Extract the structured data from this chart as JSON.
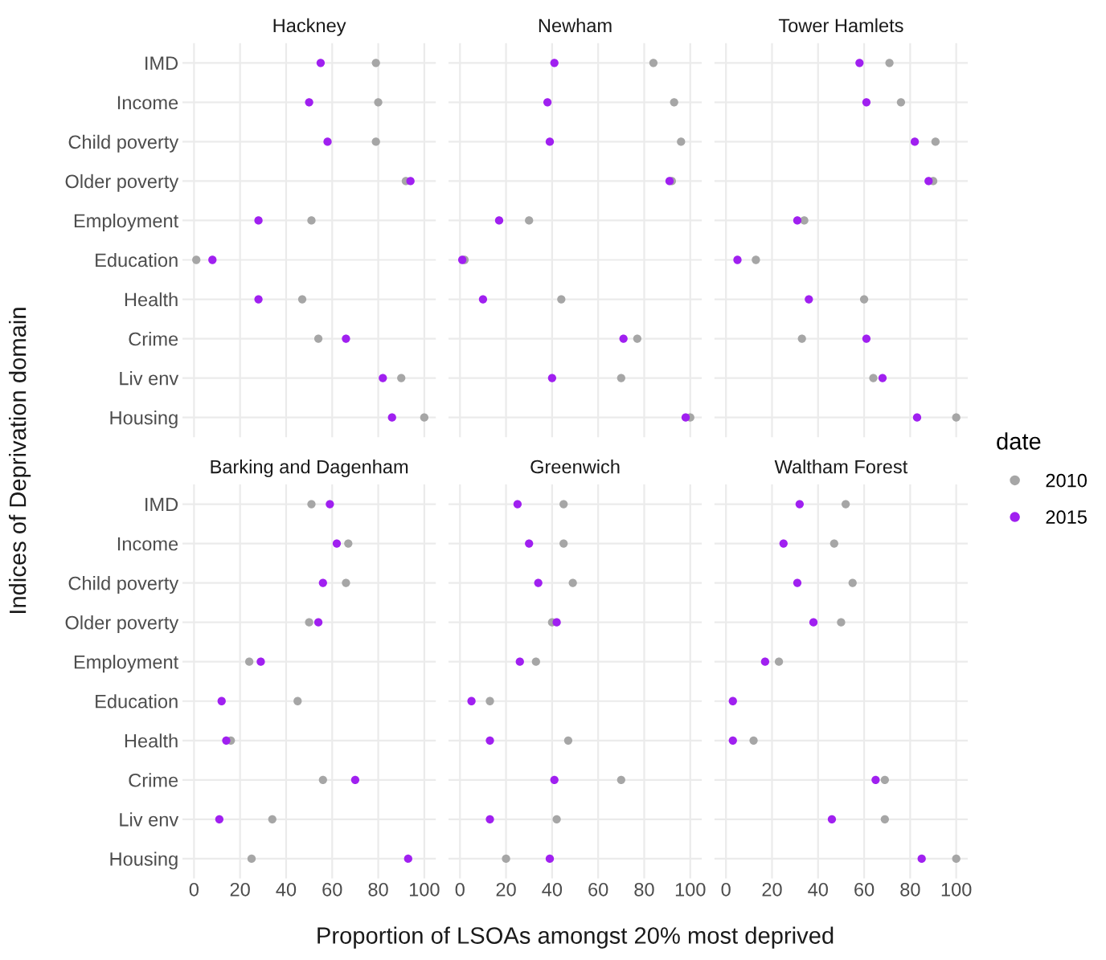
{
  "chart_data": [
    {
      "type": "scatter",
      "orientation": "horizontal",
      "title": "Hackney",
      "ylabel": "Indices of Deprivation domain",
      "legend_title": "date",
      "legend": "right",
      "categories": [
        "IMD",
        "Income",
        "Child poverty",
        "Older poverty",
        "Employment",
        "Education",
        "Health",
        "Crime",
        "Liv env",
        "Housing"
      ],
      "xlim": [
        -5,
        105
      ],
      "xticks": [
        0,
        20,
        40,
        60,
        80,
        100
      ],
      "grid": true,
      "marker": "circle",
      "tick_labels": "y",
      "series": [
        {
          "name": "2010",
          "color": "#a6a6a6",
          "values": [
            79,
            80,
            79,
            92,
            51,
            1,
            47,
            54,
            90,
            100
          ]
        },
        {
          "name": "2015",
          "color": "#a020f0",
          "values": [
            55,
            50,
            58,
            94,
            28,
            8,
            28,
            66,
            82,
            86
          ]
        }
      ]
    },
    {
      "type": "scatter",
      "orientation": "horizontal",
      "title": "Newham",
      "xlim": [
        -5,
        105
      ],
      "xticks": [
        0,
        20,
        40,
        60,
        80,
        100
      ],
      "grid": true,
      "marker": "circle",
      "tick_labels": false,
      "series": [
        {
          "name": "2010",
          "color": "#a6a6a6",
          "values": [
            84,
            93,
            96,
            92,
            30,
            2,
            44,
            77,
            70,
            100
          ]
        },
        {
          "name": "2015",
          "color": "#a020f0",
          "values": [
            41,
            38,
            39,
            91,
            17,
            1,
            10,
            71,
            40,
            98
          ]
        }
      ]
    },
    {
      "type": "scatter",
      "orientation": "horizontal",
      "title": "Tower Hamlets",
      "xlim": [
        -5,
        105
      ],
      "xticks": [
        0,
        20,
        40,
        60,
        80,
        100
      ],
      "grid": true,
      "marker": "circle",
      "tick_labels": false,
      "series": [
        {
          "name": "2010",
          "color": "#a6a6a6",
          "values": [
            71,
            76,
            91,
            90,
            34,
            13,
            60,
            33,
            64,
            100
          ]
        },
        {
          "name": "2015",
          "color": "#a020f0",
          "values": [
            58,
            61,
            82,
            88,
            31,
            5,
            36,
            61,
            68,
            83
          ]
        }
      ]
    },
    {
      "type": "scatter",
      "orientation": "horizontal",
      "title": "Barking and Dagenham",
      "categories": [
        "IMD",
        "Income",
        "Child poverty",
        "Older poverty",
        "Employment",
        "Education",
        "Health",
        "Crime",
        "Liv env",
        "Housing"
      ],
      "xlim": [
        -5,
        105
      ],
      "xticks": [
        0,
        20,
        40,
        60,
        80,
        100
      ],
      "grid": true,
      "marker": "circle",
      "series": [
        {
          "name": "2010",
          "color": "#a6a6a6",
          "values": [
            51,
            67,
            66,
            50,
            24,
            45,
            16,
            56,
            34,
            25
          ]
        },
        {
          "name": "2015",
          "color": "#a020f0",
          "values": [
            59,
            62,
            56,
            54,
            29,
            12,
            14,
            70,
            11,
            93
          ]
        }
      ]
    },
    {
      "type": "scatter",
      "orientation": "horizontal",
      "title": "Greenwich",
      "xlabel": "Proportion of LSOAs amongst 20% most deprived",
      "xlim": [
        -5,
        105
      ],
      "xticks": [
        0,
        20,
        40,
        60,
        80,
        100
      ],
      "grid": true,
      "marker": "circle",
      "tick_labels": "x",
      "series": [
        {
          "name": "2010",
          "color": "#a6a6a6",
          "values": [
            45,
            45,
            49,
            40,
            33,
            13,
            47,
            70,
            42,
            20
          ]
        },
        {
          "name": "2015",
          "color": "#a020f0",
          "values": [
            25,
            30,
            34,
            42,
            26,
            5,
            13,
            41,
            13,
            39
          ]
        }
      ]
    },
    {
      "type": "scatter",
      "orientation": "horizontal",
      "title": "Waltham Forest",
      "xlim": [
        -5,
        105
      ],
      "xticks": [
        0,
        20,
        40,
        60,
        80,
        100
      ],
      "grid": true,
      "marker": "circle",
      "tick_labels": "x",
      "series": [
        {
          "name": "2010",
          "color": "#a6a6a6",
          "values": [
            52,
            47,
            55,
            50,
            23,
            null,
            12,
            69,
            69,
            100
          ]
        },
        {
          "name": "2015",
          "color": "#a020f0",
          "values": [
            32,
            25,
            31,
            38,
            17,
            3,
            3,
            65,
            46,
            85
          ]
        }
      ]
    }
  ]
}
